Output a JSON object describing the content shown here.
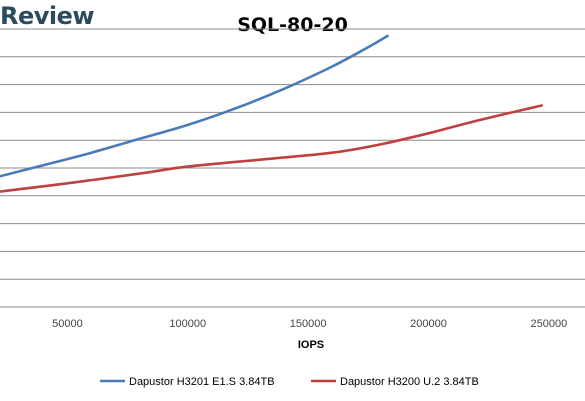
{
  "brand": {
    "text": "Review"
  },
  "chart_data": {
    "type": "line",
    "title": "SQL-80-20",
    "xlabel": "IOPS",
    "ylabel": "",
    "xlim": [
      22000,
      265000
    ],
    "ylim": [
      0,
      10
    ],
    "x_ticks": [
      50000,
      100000,
      150000,
      200000,
      250000
    ],
    "x_tick_labels": [
      "50000",
      "100000",
      "150000",
      "200000",
      "250000"
    ],
    "y_gridlines": [
      1,
      2,
      3,
      4,
      5,
      6,
      7,
      8,
      9,
      10
    ],
    "grid": true,
    "legend_position": "bottom",
    "series": [
      {
        "name": "Dapustor H3201 E1.S 3.84TB",
        "color": "#4a7ab8",
        "x": [
          22000,
          40000,
          60000,
          80000,
          100000,
          120000,
          140000,
          160000,
          175000,
          183000
        ],
        "y": [
          4.7,
          5.1,
          5.55,
          6.05,
          6.55,
          7.15,
          7.85,
          8.65,
          9.35,
          9.75
        ]
      },
      {
        "name": "Dapustor H3200 U.2 3.84TB",
        "color": "#c0403f",
        "x": [
          22000,
          50000,
          80000,
          100000,
          130000,
          160000,
          180000,
          200000,
          220000,
          247000
        ],
        "y": [
          4.15,
          4.45,
          4.8,
          5.05,
          5.3,
          5.55,
          5.85,
          6.25,
          6.7,
          7.25
        ]
      }
    ]
  }
}
